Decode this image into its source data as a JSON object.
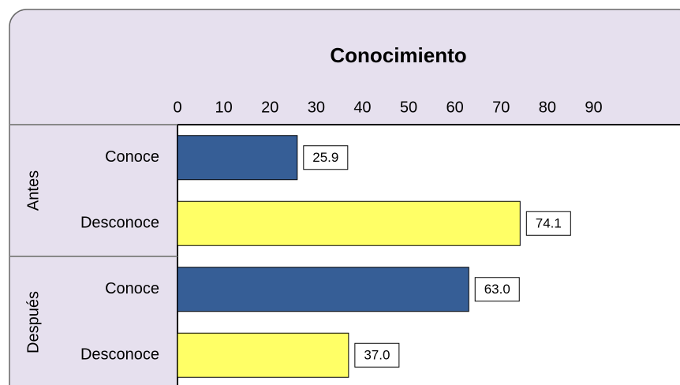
{
  "chart_data": {
    "type": "bar",
    "orientation": "horizontal",
    "title": "Conocimiento",
    "groups": [
      {
        "label": "Antes",
        "size": 2
      },
      {
        "label": "Después",
        "size": 2
      }
    ],
    "categories": [
      "Conoce",
      "Desconoce",
      "Conoce",
      "Desconoce"
    ],
    "values": [
      25.9,
      74.1,
      63.0,
      37.0
    ],
    "value_labels": [
      "25.9",
      "74.1",
      "63.0",
      "37.0"
    ],
    "colors": [
      "#365e96",
      "#ffff66",
      "#365e96",
      "#ffff66"
    ],
    "xlim": [
      0,
      108
    ],
    "xticks": [
      0,
      10,
      20,
      30,
      40,
      50,
      60,
      70,
      80,
      90
    ],
    "grid": false
  }
}
